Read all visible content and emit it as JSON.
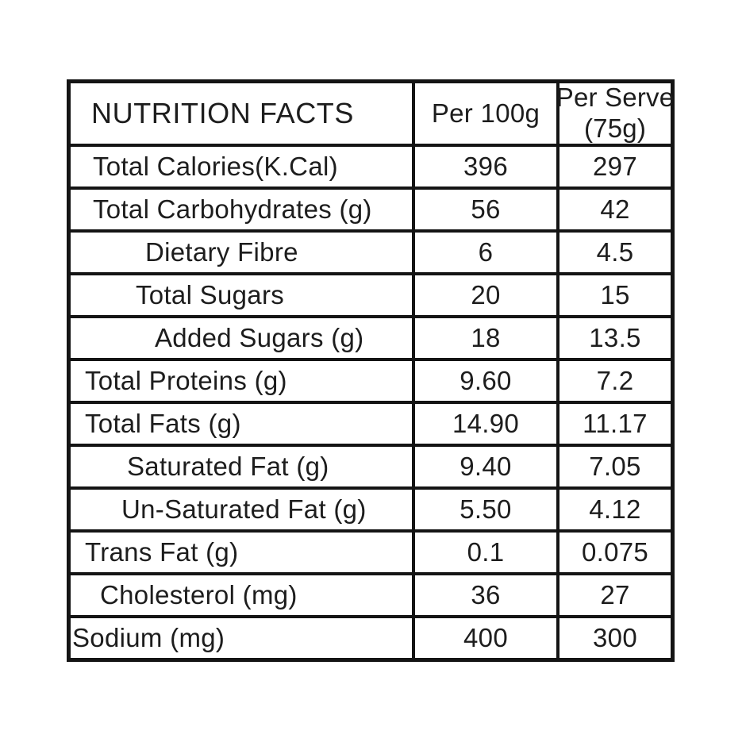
{
  "colors": {
    "background": "#ffffff",
    "border": "#141414",
    "text": "#1d1d1d"
  },
  "table": {
    "title": "NUTRITION FACTS",
    "columns": {
      "per_100g": "Per 100g",
      "per_serve_line1": "Per Serve",
      "per_serve_line2": "(75g)"
    },
    "rows": [
      {
        "label": "Total Calories(K.Cal)",
        "per_100g": "396",
        "per_serve": "297"
      },
      {
        "label": "Total Carbohydrates (g)",
        "per_100g": "56",
        "per_serve": "42"
      },
      {
        "label": "Dietary Fibre",
        "per_100g": "6",
        "per_serve": "4.5"
      },
      {
        "label": "Total Sugars",
        "per_100g": "20",
        "per_serve": "15"
      },
      {
        "label": "Added Sugars (g)",
        "per_100g": "18",
        "per_serve": "13.5"
      },
      {
        "label": "Total Proteins (g)",
        "per_100g": "9.60",
        "per_serve": "7.2"
      },
      {
        "label": "Total Fats (g)",
        "per_100g": "14.90",
        "per_serve": "11.17"
      },
      {
        "label": "Saturated Fat (g)",
        "per_100g": "9.40",
        "per_serve": "7.05"
      },
      {
        "label": "Un-Saturated Fat (g)",
        "per_100g": "5.50",
        "per_serve": "4.12"
      },
      {
        "label": "Trans Fat (g)",
        "per_100g": "0.1",
        "per_serve": "0.075"
      },
      {
        "label": "Cholesterol (mg)",
        "per_100g": "36",
        "per_serve": "27"
      },
      {
        "label": "Sodium (mg)",
        "per_100g": "400",
        "per_serve": "300"
      }
    ]
  }
}
